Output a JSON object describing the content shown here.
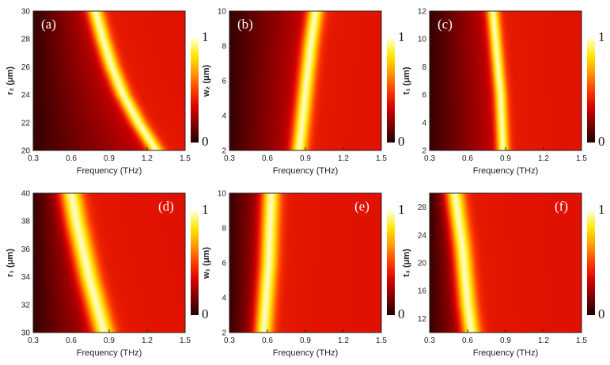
{
  "colorbar": {
    "max_label": "1",
    "min_label": "0",
    "colors": [
      "#200000",
      "#7a0000",
      "#d40000",
      "#ff3b00",
      "#ff9a00",
      "#ffe800",
      "#ffffe0"
    ]
  },
  "chart_data": [
    {
      "type": "heatmap",
      "panel_label": "(a)",
      "xlabel": "Frequency (THz)",
      "ylabel": "r₂ (μm)",
      "xlim": [
        0.3,
        1.5
      ],
      "ylim": [
        20,
        30
      ],
      "xticks": [
        "0.3",
        "0.6",
        "0.9",
        "1.2",
        "1.5"
      ],
      "yticks": [
        "20",
        "22",
        "24",
        "26",
        "28",
        "30"
      ],
      "ridge": [
        [
          20,
          1.27
        ],
        [
          22,
          1.13
        ],
        [
          24,
          1.01
        ],
        [
          26,
          0.92
        ],
        [
          28,
          0.85
        ],
        [
          30,
          0.79
        ]
      ],
      "peak_width": 0.045
    },
    {
      "type": "heatmap",
      "panel_label": "(b)",
      "xlabel": "Frequency (THz)",
      "ylabel": "w₂ (μm)",
      "xlim": [
        0.3,
        1.5
      ],
      "ylim": [
        2,
        10
      ],
      "xticks": [
        "0.3",
        "0.6",
        "0.9",
        "1.2",
        "1.5"
      ],
      "yticks": [
        "2",
        "4",
        "6",
        "8",
        "10"
      ],
      "ridge": [
        [
          2,
          0.85
        ],
        [
          4,
          0.88
        ],
        [
          6,
          0.91
        ],
        [
          8,
          0.94
        ],
        [
          10,
          0.98
        ]
      ],
      "peak_width": 0.045
    },
    {
      "type": "heatmap",
      "panel_label": "(c)",
      "xlabel": "Frequency (THz)",
      "ylabel": "t₁ (μm)",
      "xlim": [
        0.3,
        1.5
      ],
      "ylim": [
        2,
        12
      ],
      "xticks": [
        "0.3",
        "0.6",
        "0.9",
        "1.2",
        "1.5"
      ],
      "yticks": [
        "2",
        "4",
        "6",
        "8",
        "10",
        "12"
      ],
      "ridge": [
        [
          2,
          0.88
        ],
        [
          4,
          0.87
        ],
        [
          6,
          0.86
        ],
        [
          8,
          0.84
        ],
        [
          10,
          0.82
        ],
        [
          12,
          0.8
        ]
      ],
      "peak_width": 0.035
    },
    {
      "type": "heatmap",
      "panel_label": "(d)",
      "xlabel": "Frequency (THz)",
      "ylabel": "r₁ (μm)",
      "xlim": [
        0.3,
        1.5
      ],
      "ylim": [
        30,
        40
      ],
      "xticks": [
        "0.3",
        "0.6",
        "0.9",
        "1.2",
        "1.5"
      ],
      "yticks": [
        "30",
        "32",
        "34",
        "36",
        "38",
        "40"
      ],
      "ridge": [
        [
          30,
          0.86
        ],
        [
          32,
          0.8
        ],
        [
          34,
          0.74
        ],
        [
          36,
          0.69
        ],
        [
          38,
          0.64
        ],
        [
          40,
          0.6
        ]
      ],
      "peak_width": 0.06
    },
    {
      "type": "heatmap",
      "panel_label": "(e)",
      "xlabel": "Frequency (THz)",
      "ylabel": "w₁ (μm)",
      "xlim": [
        0.3,
        1.5
      ],
      "ylim": [
        2,
        10
      ],
      "xticks": [
        "0.3",
        "0.6",
        "0.9",
        "1.2",
        "1.5"
      ],
      "yticks": [
        "2",
        "4",
        "6",
        "8",
        "10"
      ],
      "ridge": [
        [
          2,
          0.57
        ],
        [
          4,
          0.59
        ],
        [
          6,
          0.61
        ],
        [
          8,
          0.62
        ],
        [
          10,
          0.63
        ]
      ],
      "peak_width": 0.05
    },
    {
      "type": "heatmap",
      "panel_label": "(f)",
      "xlabel": "Frequency (THz)",
      "ylabel": "t₃ (μm)",
      "xlim": [
        0.3,
        1.5
      ],
      "ylim": [
        10,
        30
      ],
      "xticks": [
        "0.3",
        "0.6",
        "0.9",
        "1.2",
        "1.5"
      ],
      "yticks": [
        "12",
        "16",
        "20",
        "24",
        "28"
      ],
      "ridge": [
        [
          10,
          0.63
        ],
        [
          14,
          0.6
        ],
        [
          18,
          0.58
        ],
        [
          22,
          0.56
        ],
        [
          26,
          0.53
        ],
        [
          30,
          0.5
        ]
      ],
      "peak_width": 0.05
    }
  ]
}
